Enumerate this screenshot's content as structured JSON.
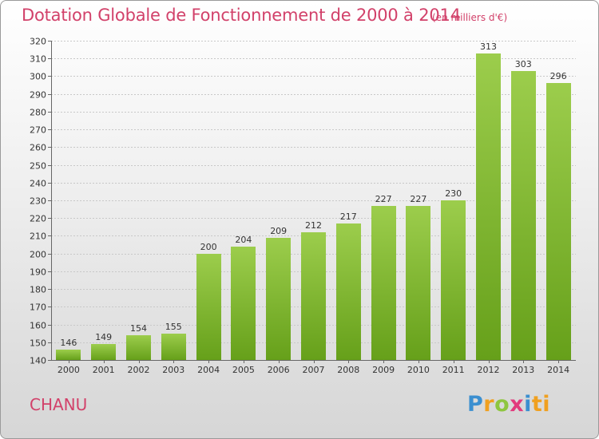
{
  "header": {
    "title": "Dotation Globale de Fonctionnement de 2000 à 2014",
    "subtitle": "(en milliers d'€)"
  },
  "footer": {
    "commune": "CHANU",
    "logo": [
      "P",
      "r",
      "o",
      "x",
      "i",
      "ti"
    ]
  },
  "colors": {
    "bar_top": "#9ccd4c",
    "bar_bottom": "#66a01a",
    "title": "#d2416a"
  },
  "chart_data": {
    "type": "bar",
    "categories": [
      "2000",
      "2001",
      "2002",
      "2003",
      "2004",
      "2005",
      "2006",
      "2007",
      "2008",
      "2009",
      "2010",
      "2011",
      "2012",
      "2013",
      "2014"
    ],
    "values": [
      146,
      149,
      154,
      155,
      200,
      204,
      209,
      212,
      217,
      227,
      227,
      230,
      313,
      303,
      296
    ],
    "title": "Dotation Globale de Fonctionnement de 2000 à 2014",
    "subtitle": "(en milliers d'€)",
    "xlabel": "",
    "ylabel": "",
    "ylim": [
      140,
      320
    ],
    "yticks": [
      140,
      150,
      160,
      170,
      180,
      190,
      200,
      210,
      220,
      230,
      240,
      250,
      260,
      270,
      280,
      290,
      300,
      310,
      320
    ],
    "grid": true,
    "data_labels": true,
    "legend": "none"
  }
}
